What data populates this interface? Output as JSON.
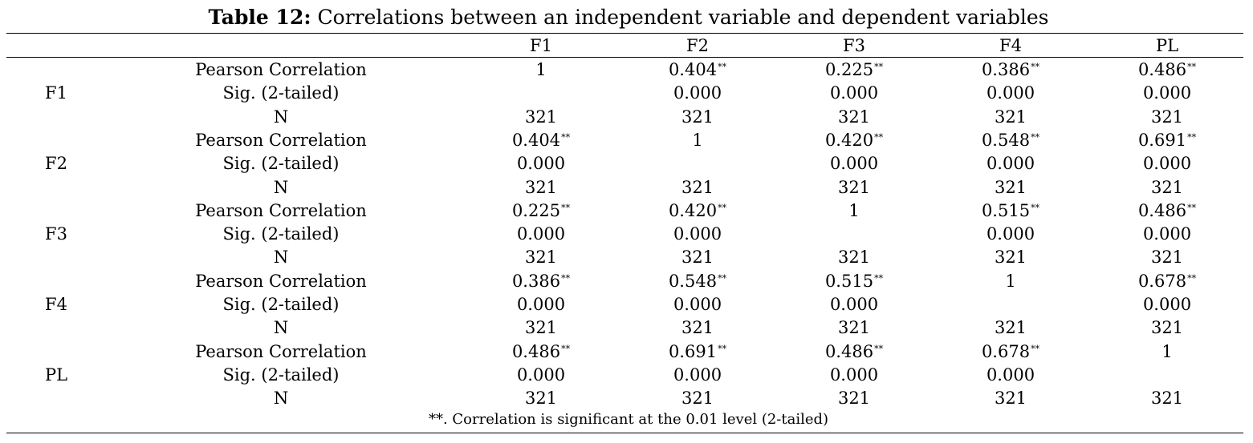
{
  "caption": {
    "label": "Table 12:",
    "text": " Correlations between an independent variable and dependent variables"
  },
  "columns": [
    "F1",
    "F2",
    "F3",
    "F4",
    "PL"
  ],
  "stat_labels": [
    "Pearson Correlation",
    "Sig. (2-tailed)",
    "N"
  ],
  "groups": [
    {
      "label": "F1",
      "rows": [
        [
          {
            "v": "1",
            "s": ""
          },
          {
            "v": "0.404",
            "s": "**"
          },
          {
            "v": "0.225",
            "s": "**"
          },
          {
            "v": "0.386",
            "s": "**"
          },
          {
            "v": "0.486",
            "s": "**"
          }
        ],
        [
          {
            "v": "",
            "s": ""
          },
          {
            "v": "0.000",
            "s": ""
          },
          {
            "v": "0.000",
            "s": ""
          },
          {
            "v": "0.000",
            "s": ""
          },
          {
            "v": "0.000",
            "s": ""
          }
        ],
        [
          {
            "v": "321",
            "s": ""
          },
          {
            "v": "321",
            "s": ""
          },
          {
            "v": "321",
            "s": ""
          },
          {
            "v": "321",
            "s": ""
          },
          {
            "v": "321",
            "s": ""
          }
        ]
      ]
    },
    {
      "label": "F2",
      "rows": [
        [
          {
            "v": "0.404",
            "s": "**"
          },
          {
            "v": "1",
            "s": ""
          },
          {
            "v": "0.420",
            "s": "**"
          },
          {
            "v": "0.548",
            "s": "**"
          },
          {
            "v": "0.691",
            "s": "**"
          }
        ],
        [
          {
            "v": "0.000",
            "s": ""
          },
          {
            "v": "",
            "s": ""
          },
          {
            "v": "0.000",
            "s": ""
          },
          {
            "v": "0.000",
            "s": ""
          },
          {
            "v": "0.000",
            "s": ""
          }
        ],
        [
          {
            "v": "321",
            "s": ""
          },
          {
            "v": "321",
            "s": ""
          },
          {
            "v": "321",
            "s": ""
          },
          {
            "v": "321",
            "s": ""
          },
          {
            "v": "321",
            "s": ""
          }
        ]
      ]
    },
    {
      "label": "F3",
      "rows": [
        [
          {
            "v": "0.225",
            "s": "**"
          },
          {
            "v": "0.420",
            "s": "**"
          },
          {
            "v": "1",
            "s": ""
          },
          {
            "v": "0.515",
            "s": "**"
          },
          {
            "v": "0.486",
            "s": "**"
          }
        ],
        [
          {
            "v": "0.000",
            "s": ""
          },
          {
            "v": "0.000",
            "s": ""
          },
          {
            "v": "",
            "s": ""
          },
          {
            "v": "0.000",
            "s": ""
          },
          {
            "v": "0.000",
            "s": ""
          }
        ],
        [
          {
            "v": "321",
            "s": ""
          },
          {
            "v": "321",
            "s": ""
          },
          {
            "v": "321",
            "s": ""
          },
          {
            "v": "321",
            "s": ""
          },
          {
            "v": "321",
            "s": ""
          }
        ]
      ]
    },
    {
      "label": "F4",
      "rows": [
        [
          {
            "v": "0.386",
            "s": "**"
          },
          {
            "v": "0.548",
            "s": "**"
          },
          {
            "v": "0.515",
            "s": "**"
          },
          {
            "v": "1",
            "s": ""
          },
          {
            "v": "0.678",
            "s": "**"
          }
        ],
        [
          {
            "v": "0.000",
            "s": ""
          },
          {
            "v": "0.000",
            "s": ""
          },
          {
            "v": "0.000",
            "s": ""
          },
          {
            "v": "",
            "s": ""
          },
          {
            "v": "0.000",
            "s": ""
          }
        ],
        [
          {
            "v": "321",
            "s": ""
          },
          {
            "v": "321",
            "s": ""
          },
          {
            "v": "321",
            "s": ""
          },
          {
            "v": "321",
            "s": ""
          },
          {
            "v": "321",
            "s": ""
          }
        ]
      ]
    },
    {
      "label": "PL",
      "rows": [
        [
          {
            "v": "0.486",
            "s": "**"
          },
          {
            "v": "0.691",
            "s": "**"
          },
          {
            "v": "0.486",
            "s": "**"
          },
          {
            "v": "0.678",
            "s": "**"
          },
          {
            "v": "1",
            "s": ""
          }
        ],
        [
          {
            "v": "0.000",
            "s": ""
          },
          {
            "v": "0.000",
            "s": ""
          },
          {
            "v": "0.000",
            "s": ""
          },
          {
            "v": "0.000",
            "s": ""
          },
          {
            "v": "",
            "s": ""
          }
        ],
        [
          {
            "v": "321",
            "s": ""
          },
          {
            "v": "321",
            "s": ""
          },
          {
            "v": "321",
            "s": ""
          },
          {
            "v": "321",
            "s": ""
          },
          {
            "v": "321",
            "s": ""
          }
        ]
      ]
    }
  ],
  "footnote": "**. Correlation is significant at the 0.01 level (2-tailed)"
}
